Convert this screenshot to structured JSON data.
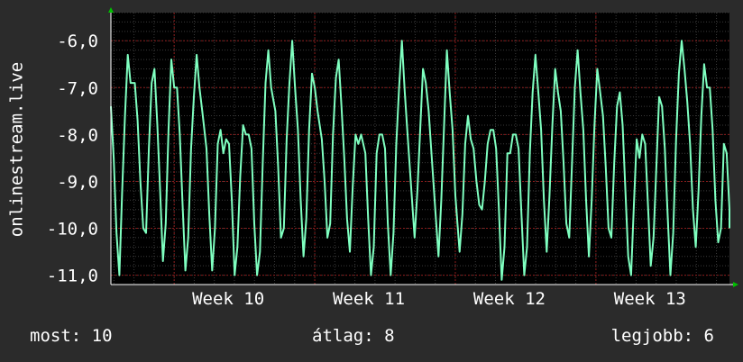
{
  "chart_data": {
    "type": "line",
    "ylabel": "onlinestream.live",
    "xlabel": "",
    "ylim": [
      -11.2,
      -5.4
    ],
    "yticks": [
      -6,
      -7,
      -8,
      -9,
      -10,
      -11
    ],
    "ytick_labels": [
      "-6,0",
      "-7,0",
      "-8,0",
      "-9,0",
      "-10,0",
      "-11,0"
    ],
    "x_categories": [
      "Week 10",
      "Week 11",
      "Week 12",
      "Week 13"
    ],
    "xlim": [
      9.55,
      13.95
    ],
    "series": [
      {
        "color": "#7fffc0",
        "points": [
          [
            9.55,
            -7.4
          ],
          [
            9.57,
            -8.5
          ],
          [
            9.59,
            -10.1
          ],
          [
            9.61,
            -11.0
          ],
          [
            9.63,
            -9.2
          ],
          [
            9.65,
            -7.6
          ],
          [
            9.67,
            -6.3
          ],
          [
            9.69,
            -6.9
          ],
          [
            9.72,
            -6.9
          ],
          [
            9.74,
            -7.7
          ],
          [
            9.76,
            -9.0
          ],
          [
            9.78,
            -10.0
          ],
          [
            9.8,
            -10.1
          ],
          [
            9.82,
            -8.3
          ],
          [
            9.84,
            -6.9
          ],
          [
            9.86,
            -6.6
          ],
          [
            9.88,
            -7.8
          ],
          [
            9.9,
            -9.2
          ],
          [
            9.92,
            -10.7
          ],
          [
            9.94,
            -9.9
          ],
          [
            9.96,
            -7.9
          ],
          [
            9.98,
            -6.4
          ],
          [
            10.0,
            -7.0
          ],
          [
            10.02,
            -7.0
          ],
          [
            10.04,
            -8.0
          ],
          [
            10.06,
            -9.5
          ],
          [
            10.08,
            -10.9
          ],
          [
            10.1,
            -10.2
          ],
          [
            10.12,
            -8.3
          ],
          [
            10.14,
            -7.2
          ],
          [
            10.16,
            -6.3
          ],
          [
            10.18,
            -7.0
          ],
          [
            10.2,
            -7.5
          ],
          [
            10.23,
            -8.3
          ],
          [
            10.25,
            -9.7
          ],
          [
            10.27,
            -10.9
          ],
          [
            10.29,
            -10.0
          ],
          [
            10.31,
            -8.2
          ],
          [
            10.33,
            -7.9
          ],
          [
            10.35,
            -8.4
          ],
          [
            10.37,
            -8.1
          ],
          [
            10.39,
            -8.2
          ],
          [
            10.41,
            -9.4
          ],
          [
            10.43,
            -11.0
          ],
          [
            10.45,
            -10.4
          ],
          [
            10.47,
            -8.9
          ],
          [
            10.49,
            -7.8
          ],
          [
            10.51,
            -8.0
          ],
          [
            10.53,
            -8.0
          ],
          [
            10.55,
            -8.3
          ],
          [
            10.57,
            -9.9
          ],
          [
            10.59,
            -11.0
          ],
          [
            10.61,
            -10.5
          ],
          [
            10.63,
            -8.6
          ],
          [
            10.65,
            -6.9
          ],
          [
            10.67,
            -6.2
          ],
          [
            10.69,
            -7.0
          ],
          [
            10.72,
            -7.5
          ],
          [
            10.74,
            -8.7
          ],
          [
            10.76,
            -10.2
          ],
          [
            10.78,
            -10.0
          ],
          [
            10.8,
            -8.1
          ],
          [
            10.82,
            -6.9
          ],
          [
            10.84,
            -6.0
          ],
          [
            10.86,
            -7.0
          ],
          [
            10.88,
            -7.9
          ],
          [
            10.9,
            -9.4
          ],
          [
            10.92,
            -10.6
          ],
          [
            10.94,
            -9.8
          ],
          [
            10.96,
            -7.9
          ],
          [
            10.98,
            -6.7
          ],
          [
            11.0,
            -7.0
          ],
          [
            11.02,
            -7.5
          ],
          [
            11.05,
            -8.1
          ],
          [
            11.07,
            -9.0
          ],
          [
            11.09,
            -10.2
          ],
          [
            11.11,
            -9.9
          ],
          [
            11.13,
            -8.0
          ],
          [
            11.15,
            -6.8
          ],
          [
            11.17,
            -6.4
          ],
          [
            11.19,
            -7.4
          ],
          [
            11.21,
            -8.5
          ],
          [
            11.23,
            -9.8
          ],
          [
            11.25,
            -10.5
          ],
          [
            11.27,
            -9.1
          ],
          [
            11.29,
            -8.0
          ],
          [
            11.31,
            -8.2
          ],
          [
            11.33,
            -8.0
          ],
          [
            11.36,
            -8.4
          ],
          [
            11.38,
            -9.8
          ],
          [
            11.4,
            -11.0
          ],
          [
            11.42,
            -10.4
          ],
          [
            11.44,
            -8.4
          ],
          [
            11.46,
            -8.0
          ],
          [
            11.48,
            -8.0
          ],
          [
            11.5,
            -8.3
          ],
          [
            11.52,
            -9.9
          ],
          [
            11.54,
            -11.0
          ],
          [
            11.56,
            -10.1
          ],
          [
            11.58,
            -8.2
          ],
          [
            11.6,
            -7.0
          ],
          [
            11.62,
            -6.0
          ],
          [
            11.64,
            -7.1
          ],
          [
            11.66,
            -8.0
          ],
          [
            11.69,
            -9.3
          ],
          [
            11.71,
            -10.2
          ],
          [
            11.73,
            -9.2
          ],
          [
            11.75,
            -7.9
          ],
          [
            11.77,
            -6.6
          ],
          [
            11.79,
            -6.9
          ],
          [
            11.81,
            -7.5
          ],
          [
            11.83,
            -8.4
          ],
          [
            11.86,
            -9.7
          ],
          [
            11.88,
            -10.6
          ],
          [
            11.9,
            -9.4
          ],
          [
            11.92,
            -7.8
          ],
          [
            11.94,
            -6.2
          ],
          [
            11.96,
            -7.1
          ],
          [
            11.98,
            -7.9
          ],
          [
            12.0,
            -9.3
          ],
          [
            12.03,
            -10.5
          ],
          [
            12.05,
            -9.7
          ],
          [
            12.07,
            -8.2
          ],
          [
            12.09,
            -7.6
          ],
          [
            12.11,
            -8.1
          ],
          [
            12.13,
            -8.3
          ],
          [
            12.15,
            -9.0
          ],
          [
            12.17,
            -9.5
          ],
          [
            12.19,
            -9.6
          ],
          [
            12.21,
            -9.0
          ],
          [
            12.23,
            -8.2
          ],
          [
            12.25,
            -7.9
          ],
          [
            12.27,
            -7.9
          ],
          [
            12.29,
            -8.3
          ],
          [
            12.31,
            -9.6
          ],
          [
            12.33,
            -11.1
          ],
          [
            12.35,
            -10.4
          ],
          [
            12.37,
            -8.4
          ],
          [
            12.39,
            -8.4
          ],
          [
            12.41,
            -8.0
          ],
          [
            12.43,
            -8.0
          ],
          [
            12.45,
            -8.3
          ],
          [
            12.47,
            -9.7
          ],
          [
            12.49,
            -11.0
          ],
          [
            12.51,
            -10.4
          ],
          [
            12.53,
            -8.4
          ],
          [
            12.55,
            -7.1
          ],
          [
            12.57,
            -6.3
          ],
          [
            12.59,
            -7.1
          ],
          [
            12.61,
            -7.9
          ],
          [
            12.63,
            -9.4
          ],
          [
            12.65,
            -10.5
          ],
          [
            12.67,
            -9.3
          ],
          [
            12.69,
            -7.8
          ],
          [
            12.71,
            -6.6
          ],
          [
            12.73,
            -7.1
          ],
          [
            12.75,
            -7.5
          ],
          [
            12.77,
            -8.6
          ],
          [
            12.79,
            -9.9
          ],
          [
            12.81,
            -10.2
          ],
          [
            12.83,
            -8.6
          ],
          [
            12.85,
            -7.0
          ],
          [
            12.87,
            -6.2
          ],
          [
            12.89,
            -7.1
          ],
          [
            12.91,
            -7.9
          ],
          [
            12.93,
            -9.4
          ],
          [
            12.95,
            -10.6
          ],
          [
            12.97,
            -9.4
          ],
          [
            12.99,
            -7.8
          ],
          [
            13.01,
            -6.6
          ],
          [
            13.03,
            -7.1
          ],
          [
            13.05,
            -7.6
          ],
          [
            13.07,
            -8.7
          ],
          [
            13.09,
            -10.0
          ],
          [
            13.11,
            -10.2
          ],
          [
            13.13,
            -8.6
          ],
          [
            13.15,
            -7.4
          ],
          [
            13.17,
            -7.1
          ],
          [
            13.19,
            -7.8
          ],
          [
            13.21,
            -9.2
          ],
          [
            13.23,
            -10.6
          ],
          [
            13.25,
            -11.0
          ],
          [
            13.27,
            -9.5
          ],
          [
            13.29,
            -8.1
          ],
          [
            13.31,
            -8.5
          ],
          [
            13.33,
            -8.0
          ],
          [
            13.35,
            -8.2
          ],
          [
            13.37,
            -9.5
          ],
          [
            13.39,
            -10.8
          ],
          [
            13.41,
            -10.2
          ],
          [
            13.43,
            -8.7
          ],
          [
            13.45,
            -7.2
          ],
          [
            13.47,
            -7.4
          ],
          [
            13.49,
            -8.3
          ],
          [
            13.51,
            -9.7
          ],
          [
            13.53,
            -11.0
          ],
          [
            13.55,
            -10.1
          ],
          [
            13.57,
            -8.1
          ],
          [
            13.59,
            -6.7
          ],
          [
            13.61,
            -6.0
          ],
          [
            13.63,
            -6.6
          ],
          [
            13.65,
            -7.3
          ],
          [
            13.67,
            -8.2
          ],
          [
            13.69,
            -9.6
          ],
          [
            13.71,
            -10.4
          ],
          [
            13.73,
            -9.2
          ],
          [
            13.75,
            -7.6
          ],
          [
            13.77,
            -6.5
          ],
          [
            13.79,
            -7.0
          ],
          [
            13.81,
            -7.0
          ],
          [
            13.83,
            -7.9
          ],
          [
            13.85,
            -9.4
          ],
          [
            13.87,
            -10.3
          ],
          [
            13.89,
            -10.0
          ],
          [
            13.91,
            -8.2
          ],
          [
            13.93,
            -8.4
          ],
          [
            13.95,
            -9.6
          ],
          [
            13.97,
            -10.0
          ]
        ]
      }
    ],
    "background": "#000000",
    "grid": true,
    "grid_major_color": "#8b1a1a",
    "grid_minor_color": "#3a3a3a",
    "axis_color": "#ffffff",
    "arrow_color": "#00c000"
  },
  "footer": {
    "now_label": "most:",
    "now_value": "10",
    "avg_label": "átlag:",
    "avg_value": "8",
    "max_label": "legjobb:",
    "max_value": "6"
  }
}
